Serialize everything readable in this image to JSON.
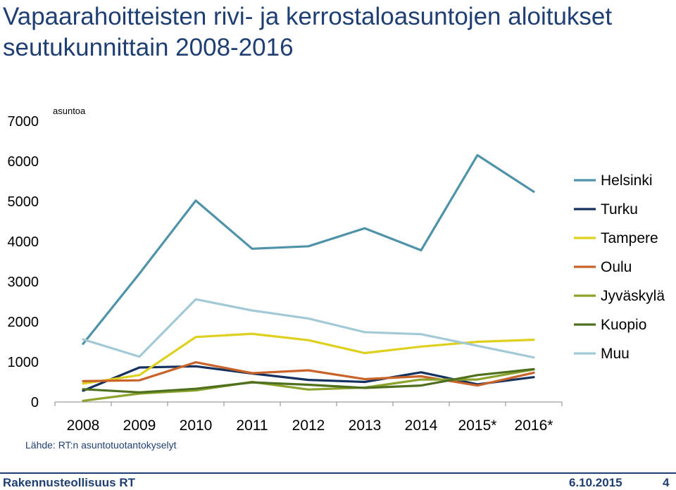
{
  "slide": {
    "title": "Vapaarahoitteisten rivi- ja kerrostaloasuntojen aloitukset seutukunnittain 2008-2016",
    "source": "Lähde: RT:n asuntotuotantokyselyt",
    "footer_left": "Rakennusteollisuus RT",
    "footer_date": "6.10.2015",
    "page_number": "4"
  },
  "chart_data": {
    "type": "line",
    "ylabel": "asuntoa",
    "ylim": [
      0,
      7000
    ],
    "yticks": [
      "0",
      "1000",
      "2000",
      "3000",
      "4000",
      "5000",
      "6000",
      "7000"
    ],
    "categories": [
      "2008",
      "2009",
      "2010",
      "2011",
      "2012",
      "2013",
      "2014",
      "2015*",
      "2016*"
    ],
    "grid": false,
    "legend_position": "right",
    "series": [
      {
        "name": "Helsinki",
        "color": "#4e93a8",
        "values": [
          1450,
          3200,
          5020,
          3820,
          3880,
          4330,
          3780,
          6150,
          5240
        ]
      },
      {
        "name": "Turku",
        "color": "#14305e",
        "values": [
          280,
          860,
          890,
          710,
          550,
          500,
          740,
          440,
          620
        ]
      },
      {
        "name": "Tampere",
        "color": "#ddd01e",
        "values": [
          460,
          670,
          1620,
          1700,
          1540,
          1220,
          1380,
          1500,
          1550
        ]
      },
      {
        "name": "Oulu",
        "color": "#c8632a",
        "values": [
          520,
          540,
          990,
          720,
          790,
          570,
          640,
          410,
          730
        ]
      },
      {
        "name": "Jyväskylä",
        "color": "#8ca42c",
        "values": [
          30,
          210,
          290,
          500,
          310,
          360,
          560,
          560,
          810
        ]
      },
      {
        "name": "Kuopio",
        "color": "#4e6f1e",
        "values": [
          320,
          240,
          330,
          490,
          430,
          350,
          410,
          670,
          820
        ]
      },
      {
        "name": "Muu",
        "color": "#a3c9d6",
        "values": [
          1560,
          1130,
          2560,
          2280,
          2080,
          1740,
          1690,
          1400,
          1110
        ]
      }
    ]
  }
}
